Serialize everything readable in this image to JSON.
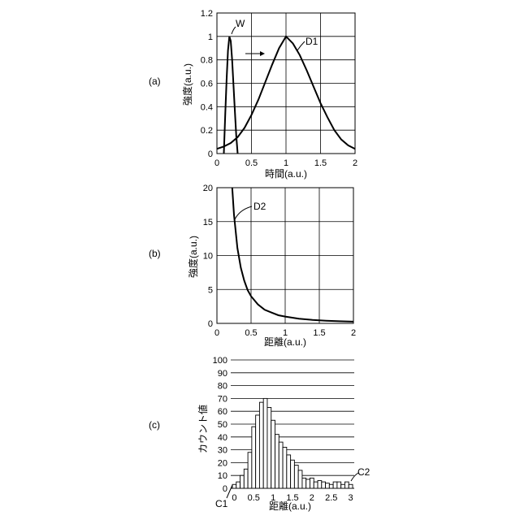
{
  "chart_data": [
    {
      "type": "line",
      "panel_label": "(a)",
      "xlabel": "時間(a.u.)",
      "ylabel": "強度(a.u.)",
      "xlim": [
        0,
        2
      ],
      "ylim": [
        0,
        1.2
      ],
      "xticks": [
        "0",
        "0.5",
        "1",
        "1.5",
        "2"
      ],
      "yticks": [
        "0",
        "0.2",
        "0.4",
        "0.6",
        "0.8",
        "1",
        "1.2"
      ],
      "grid": true,
      "series": [
        {
          "name": "W",
          "x": [
            0.1,
            0.12,
            0.14,
            0.16,
            0.18,
            0.2,
            0.22,
            0.24,
            0.26,
            0.28,
            0.3
          ],
          "y": [
            0.0,
            0.33,
            0.63,
            0.88,
            1.0,
            0.96,
            0.8,
            0.58,
            0.36,
            0.15,
            0.0
          ]
        },
        {
          "name": "D1",
          "x": [
            0,
            0.1,
            0.2,
            0.3,
            0.4,
            0.5,
            0.6,
            0.7,
            0.8,
            0.9,
            1.0,
            1.1,
            1.2,
            1.3,
            1.4,
            1.5,
            1.6,
            1.7,
            1.8,
            1.9,
            2.0
          ],
          "y": [
            0.04,
            0.06,
            0.09,
            0.14,
            0.22,
            0.33,
            0.46,
            0.61,
            0.76,
            0.9,
            1.0,
            0.94,
            0.84,
            0.71,
            0.57,
            0.43,
            0.31,
            0.2,
            0.12,
            0.07,
            0.04
          ]
        }
      ],
      "annotations": [
        {
          "text": "W",
          "target": "W"
        },
        {
          "text": "D1",
          "target": "D1"
        },
        {
          "text": "→",
          "meaning": "arrow from W toward D1"
        }
      ]
    },
    {
      "type": "line",
      "panel_label": "(b)",
      "xlabel": "距離(a.u.)",
      "ylabel": "強度(a.u.)",
      "xlim": [
        0,
        2
      ],
      "ylim": [
        0,
        20
      ],
      "xticks": [
        "0",
        "0.5",
        "1",
        "1.5",
        "2"
      ],
      "yticks": [
        "0",
        "5",
        "10",
        "15",
        "20"
      ],
      "grid": true,
      "series": [
        {
          "name": "D2",
          "x": [
            0.224,
            0.25,
            0.3,
            0.35,
            0.4,
            0.45,
            0.5,
            0.6,
            0.7,
            0.8,
            0.9,
            1.0,
            1.2,
            1.4,
            1.6,
            1.8,
            2.0
          ],
          "y": [
            20.0,
            16.0,
            11.1,
            8.2,
            6.3,
            4.9,
            4.0,
            2.8,
            2.0,
            1.6,
            1.2,
            1.0,
            0.69,
            0.51,
            0.39,
            0.31,
            0.25
          ]
        }
      ],
      "annotations": [
        {
          "text": "D2",
          "target": "D2"
        }
      ]
    },
    {
      "type": "bar",
      "panel_label": "(c)",
      "xlabel": "距離(a.u.)",
      "ylabel": "カウント値",
      "xlim": [
        -0.05,
        3.05
      ],
      "ylim": [
        0,
        100
      ],
      "xticks": [
        "0",
        "0.5",
        "1",
        "1.5",
        "2",
        "2.5",
        "3"
      ],
      "yticks": [
        "0",
        "10",
        "20",
        "30",
        "40",
        "50",
        "60",
        "70",
        "80",
        "90",
        "100"
      ],
      "grid": "horizontal",
      "bin_width": 0.1,
      "bin_starts": [
        -0.05,
        0.05,
        0.15,
        0.25,
        0.35,
        0.45,
        0.55,
        0.65,
        0.75,
        0.85,
        0.95,
        1.05,
        1.15,
        1.25,
        1.35,
        1.45,
        1.55,
        1.65,
        1.75,
        1.85,
        1.95,
        2.05,
        2.15,
        2.25,
        2.35,
        2.45,
        2.55,
        2.65,
        2.75,
        2.85,
        2.95
      ],
      "values": [
        3,
        5,
        10,
        15,
        28,
        48,
        57,
        67,
        70,
        63,
        53,
        42,
        36,
        32,
        26,
        22,
        18,
        14,
        8,
        7,
        8,
        5,
        6,
        5,
        4,
        3,
        5,
        5,
        3,
        5,
        3
      ],
      "annotations": [
        {
          "text": "C1",
          "target": "first-bin"
        },
        {
          "text": "C2",
          "target": "last-bin"
        }
      ]
    }
  ]
}
